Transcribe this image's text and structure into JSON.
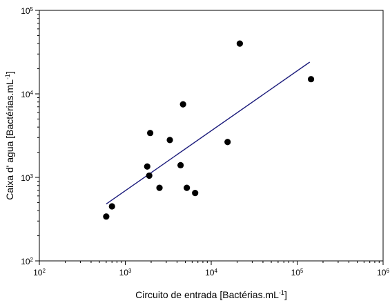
{
  "chart_data": {
    "type": "scatter",
    "title": "",
    "xlabel": {
      "base": "Circuito de entrada [Bactérias.mL",
      "sup": "-1",
      "end": "]"
    },
    "ylabel": {
      "base": "Caixa d' agua [Bactérias.mL",
      "sup": "-1",
      "end": "]"
    },
    "xscale": "log",
    "yscale": "log",
    "xlim": [
      100,
      1000000
    ],
    "ylim": [
      100,
      100000
    ],
    "xticks": [
      {
        "base": "10",
        "exp": "2"
      },
      {
        "base": "10",
        "exp": "3"
      },
      {
        "base": "10",
        "exp": "4"
      },
      {
        "base": "10",
        "exp": "5"
      },
      {
        "base": "10",
        "exp": "6"
      }
    ],
    "yticks": [
      {
        "base": "10",
        "exp": "2"
      },
      {
        "base": "10",
        "exp": "3"
      },
      {
        "base": "10",
        "exp": "4"
      },
      {
        "base": "10",
        "exp": "5"
      }
    ],
    "grid": false,
    "points": [
      {
        "x": 600,
        "y": 340
      },
      {
        "x": 700,
        "y": 450
      },
      {
        "x": 1800,
        "y": 1350
      },
      {
        "x": 1900,
        "y": 1050
      },
      {
        "x": 1950,
        "y": 3400
      },
      {
        "x": 2500,
        "y": 750
      },
      {
        "x": 3300,
        "y": 2800
      },
      {
        "x": 4400,
        "y": 1400
      },
      {
        "x": 4700,
        "y": 7500
      },
      {
        "x": 5200,
        "y": 750
      },
      {
        "x": 6500,
        "y": 650
      },
      {
        "x": 15500,
        "y": 2650
      },
      {
        "x": 21500,
        "y": 40000
      },
      {
        "x": 145000,
        "y": 15000
      }
    ],
    "trendline": {
      "x": [
        600,
        140000
      ],
      "y": [
        480,
        24000
      ]
    },
    "colors": {
      "points": "#000000",
      "trendline": "#1c1c7c",
      "axes": "#000000"
    }
  }
}
